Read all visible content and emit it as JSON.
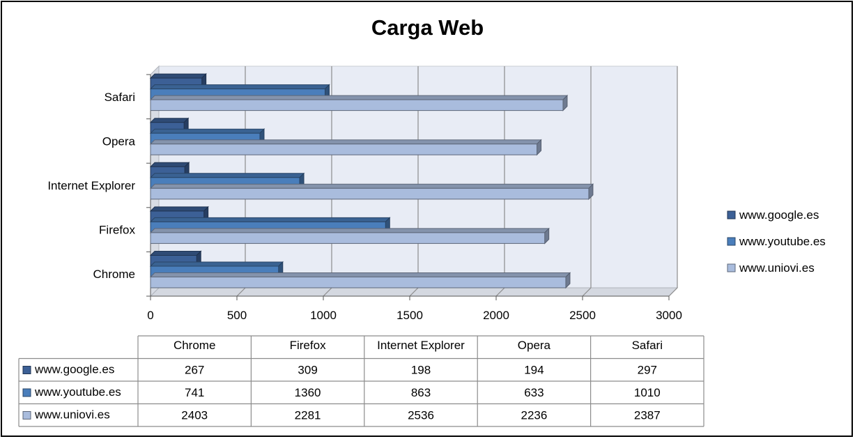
{
  "chart_data": {
    "type": "bar",
    "orientation": "horizontal",
    "title": "Carga Web",
    "categories": [
      "Chrome",
      "Firefox",
      "Internet Explorer",
      "Opera",
      "Safari"
    ],
    "series": [
      {
        "name": "www.google.es",
        "values": [
          267,
          309,
          198,
          194,
          297
        ],
        "color": "#3C6096"
      },
      {
        "name": "www.youtube.es",
        "values": [
          741,
          1360,
          863,
          633,
          1010
        ],
        "color": "#4A7EBB"
      },
      {
        "name": "www.uniovi.es",
        "values": [
          2403,
          2281,
          2536,
          2236,
          2387
        ],
        "color": "#A9BCDD"
      }
    ],
    "xlim": [
      0,
      3000
    ],
    "x_ticks": [
      "0",
      "500",
      "1000",
      "1500",
      "2000",
      "2500",
      "3000"
    ],
    "grid": true,
    "legend_position": "right",
    "data_table": true,
    "style": "3d-clustered-bar"
  }
}
